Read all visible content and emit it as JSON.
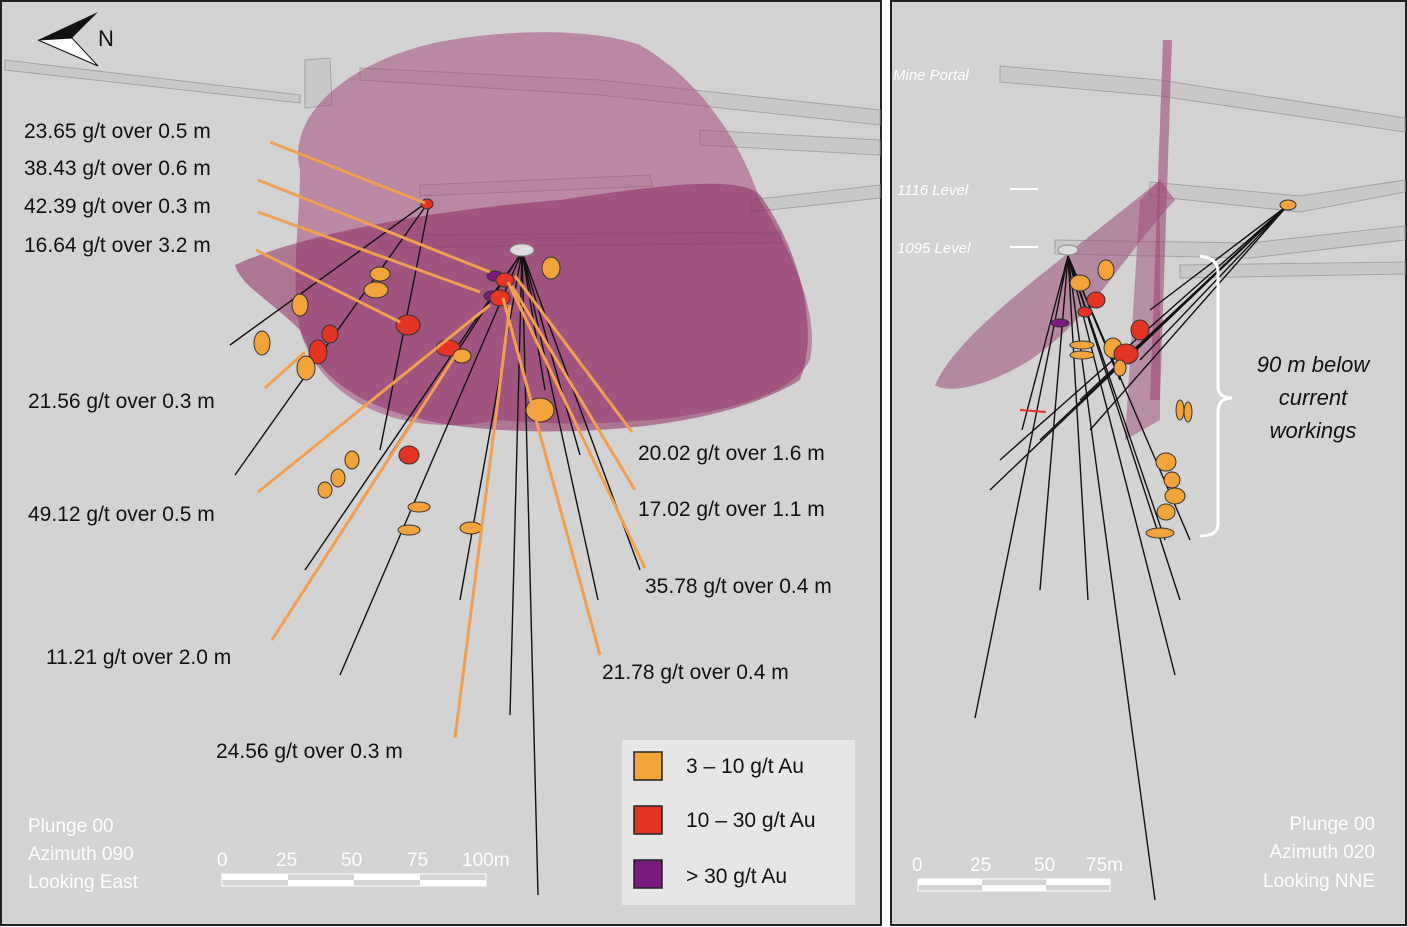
{
  "colors": {
    "background": "#D3D3D3",
    "orange_arrow": "#F0A050",
    "grade_3_10": "#F2A33A",
    "grade_10_30": "#E53324",
    "grade_30_plus": "#7B1A7E",
    "solid_pink": "#A04A7C"
  },
  "north_arrow": {
    "label": "N",
    "icon": "north-arrow-icon"
  },
  "left_view": {
    "intercepts": [
      "23.65 g/t over 0.5 m",
      "38.43 g/t over 0.6 m",
      "42.39 g/t over 0.3 m",
      "16.64 g/t over 3.2 m",
      "21.56 g/t over 0.3 m",
      "49.12 g/t over 0.5 m",
      "11.21 g/t over 2.0 m",
      "24.56 g/t over 0.3 m",
      "21.78 g/t over 0.4 m",
      "35.78 g/t over 0.4 m",
      "17.02 g/t over 1.1 m",
      "20.02 g/t over 1.6 m"
    ],
    "orientation": [
      "Plunge 00",
      "Azimuth 090",
      "Looking East"
    ],
    "scale_ticks": [
      "0",
      "25",
      "50",
      "75",
      "100m"
    ]
  },
  "right_view": {
    "labels": {
      "mine_portal": "Mine Portal",
      "level_1116": "1116 Level",
      "level_1095": "1095 Level"
    },
    "depth_note": [
      "90 m below",
      "current",
      "workings"
    ],
    "orientation": [
      "Plunge 00",
      "Azimuth 020",
      "Looking NNE"
    ],
    "scale_ticks": [
      "0",
      "25",
      "50",
      "75m"
    ]
  },
  "legend": [
    {
      "label": "3 – 10 g/t Au",
      "color": "#F2A33A"
    },
    {
      "label": "10 – 30 g/t Au",
      "color": "#E53324"
    },
    {
      "label": "> 30 g/t Au",
      "color": "#7B1A7E"
    }
  ]
}
